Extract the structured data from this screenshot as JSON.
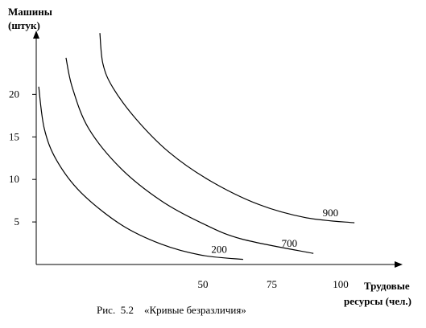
{
  "chart_data": {
    "type": "line",
    "y_label": [
      "Машины",
      "(штук)"
    ],
    "x_label": [
      "Трудовые",
      "ресурсы (чел.)"
    ],
    "caption": "Рис.  5.2    «Кривые безразличия»",
    "xlim": [
      -10.5,
      122.5
    ],
    "xticks": [
      50,
      75,
      100
    ],
    "ylim": [
      0,
      27.5
    ],
    "yticks": [
      5,
      10,
      15,
      20
    ],
    "grid": false,
    "series": [
      {
        "name": "200",
        "color": "#000000",
        "x": [
          -9.6,
          -7.6,
          -3.2,
          5.6,
          20.2,
          34.8,
          49.4,
          64.6
        ],
        "values": [
          20.9,
          16.0,
          12.3,
          8.5,
          4.7,
          2.4,
          1.1,
          0.6
        ]
      },
      {
        "name": "700",
        "color": "#000000",
        "x": [
          0.3,
          2.6,
          8.5,
          20.2,
          34.8,
          49.4,
          64.0,
          90.1
        ],
        "values": [
          24.3,
          20.8,
          16.0,
          11.3,
          7.5,
          4.9,
          3.0,
          1.3
        ]
      },
      {
        "name": "900",
        "color": "#000000",
        "x": [
          12.6,
          13.7,
          17.3,
          26.0,
          37.7,
          52.3,
          69.9,
          87.4,
          105.0
        ],
        "values": [
          27.2,
          23.6,
          20.8,
          17.0,
          13.2,
          9.9,
          7.1,
          5.5,
          4.9
        ]
      }
    ]
  }
}
